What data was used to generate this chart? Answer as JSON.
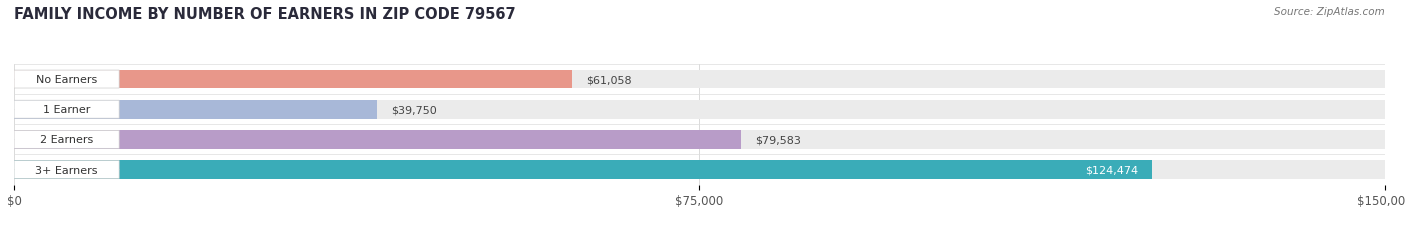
{
  "title": "FAMILY INCOME BY NUMBER OF EARNERS IN ZIP CODE 79567",
  "source": "Source: ZipAtlas.com",
  "categories": [
    "No Earners",
    "1 Earner",
    "2 Earners",
    "3+ Earners"
  ],
  "values": [
    61058,
    39750,
    79583,
    124474
  ],
  "labels": [
    "$61,058",
    "$39,750",
    "$79,583",
    "$124,474"
  ],
  "bar_colors": [
    "#e8978a",
    "#a8b8d8",
    "#b89cc8",
    "#3aacb8"
  ],
  "track_color": "#ebebeb",
  "value_label_colors": [
    "#444444",
    "#444444",
    "#444444",
    "#ffffff"
  ],
  "xlim": [
    0,
    150000
  ],
  "xticks": [
    0,
    75000,
    150000
  ],
  "xticklabels": [
    "$0",
    "$75,000",
    "$150,000"
  ],
  "background_color": "#ffffff",
  "title_fontsize": 10.5,
  "bar_height": 0.62,
  "figsize": [
    14.06,
    2.32
  ]
}
